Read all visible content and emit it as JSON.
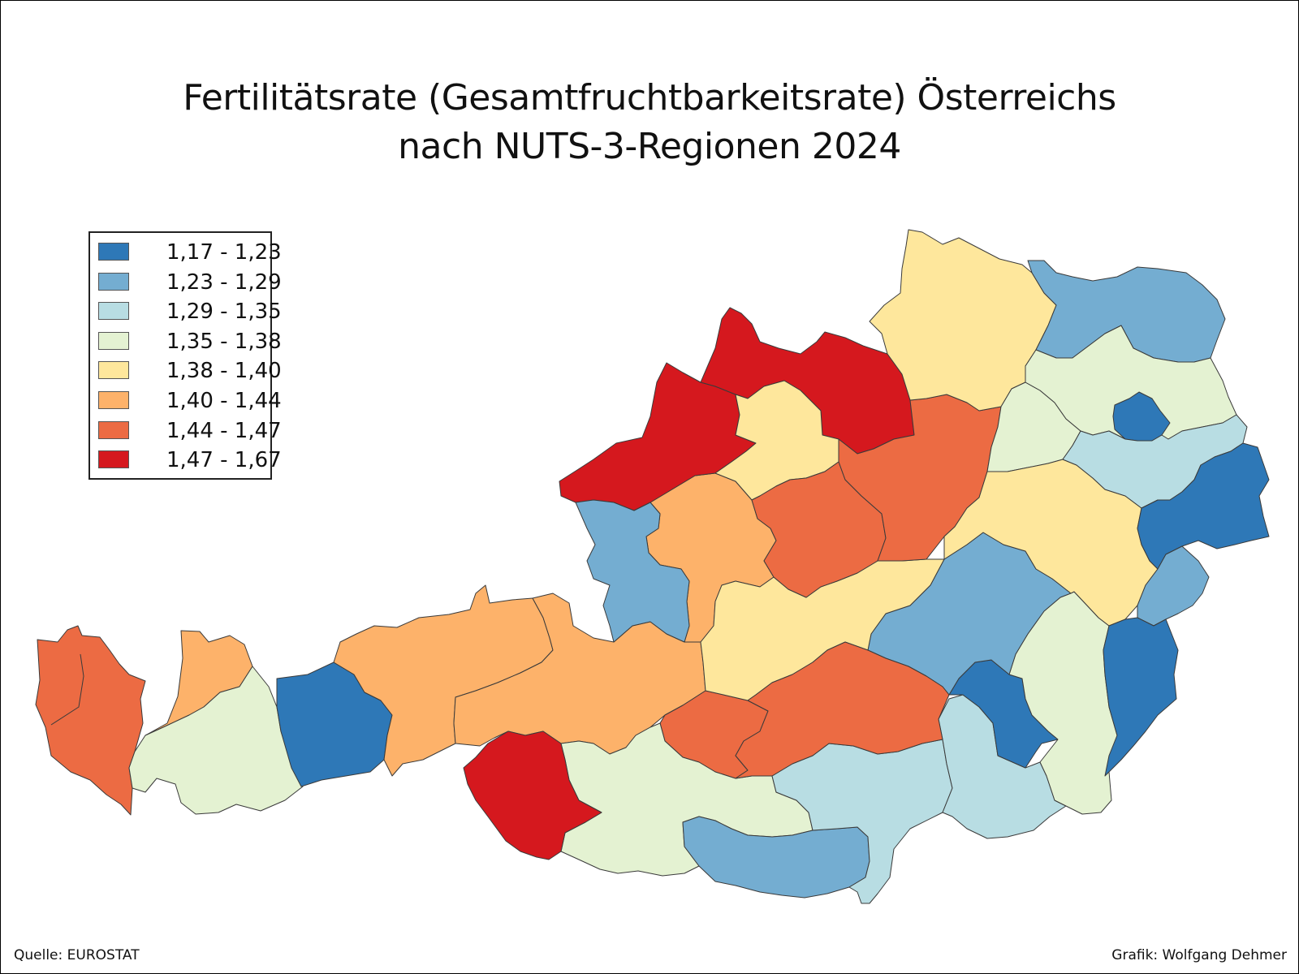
{
  "title": {
    "line1": "Fertilitätsrate (Gesamtfruchtbarkeitsrate) Österreichs",
    "line2": "nach NUTS-3-Regionen 2024"
  },
  "legend": [
    {
      "label": "1,17 - 1,23",
      "color": "#2e78b7"
    },
    {
      "label": "1,23 - 1,29",
      "color": "#74add1"
    },
    {
      "label": "1,29 - 1,35",
      "color": "#b8dde3"
    },
    {
      "label": "1,35 - 1,38",
      "color": "#e4f2d2"
    },
    {
      "label": "1,38 - 1,40",
      "color": "#fee79c"
    },
    {
      "label": "1,40 - 1,44",
      "color": "#fdb26a"
    },
    {
      "label": "1,44 - 1,47",
      "color": "#ec6b43"
    },
    {
      "label": "1,47 - 1,67",
      "color": "#d5181e"
    }
  ],
  "footer": {
    "source": "Quelle: EUROSTAT",
    "credit": "Grafik: Wolfgang Dehmer"
  }
}
